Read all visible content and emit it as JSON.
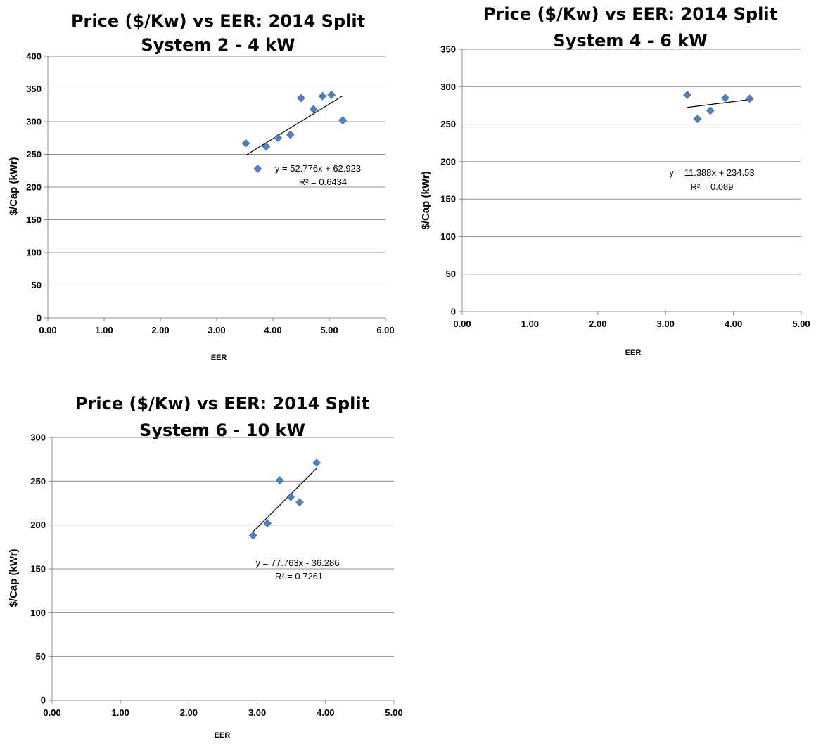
{
  "chart_data": [
    {
      "type": "scatter",
      "title_lines": [
        "Price ($/Kw) vs EER:  2014 Split",
        "System 2 - 4 kW"
      ],
      "xlabel": "EER",
      "ylabel": "$/Cap (kWr)",
      "xlim": [
        0,
        6
      ],
      "ylim": [
        0,
        400
      ],
      "xticks": [
        "0.00",
        "1.00",
        "2.00",
        "3.00",
        "4.00",
        "5.00",
        "6.00"
      ],
      "yticks": [
        "0",
        "50",
        "100",
        "150",
        "200",
        "250",
        "300",
        "350",
        "400"
      ],
      "grid": "horizontal",
      "marker_color": "#4f81bd",
      "points": [
        {
          "x": 3.52,
          "y": 267
        },
        {
          "x": 3.73,
          "y": 228
        },
        {
          "x": 3.88,
          "y": 262
        },
        {
          "x": 4.09,
          "y": 275
        },
        {
          "x": 4.31,
          "y": 280
        },
        {
          "x": 4.5,
          "y": 336
        },
        {
          "x": 4.72,
          "y": 319
        },
        {
          "x": 4.88,
          "y": 339
        },
        {
          "x": 5.04,
          "y": 341
        },
        {
          "x": 5.24,
          "y": 302
        }
      ],
      "trendline": {
        "slope": 52.776,
        "intercept": 62.923,
        "x_start": 3.52,
        "x_end": 5.24
      },
      "equation": "y = 52.776x + 62.923",
      "r_squared": "R² = 0.6434"
    },
    {
      "type": "scatter",
      "title_lines": [
        "Price ($/Kw) vs EER:  2014 Split",
        "System 4 - 6 kW"
      ],
      "xlabel": "EER",
      "ylabel": "$/Cap (kWr)",
      "xlim": [
        0,
        5
      ],
      "ylim": [
        0,
        350
      ],
      "xticks": [
        "0.00",
        "1.00",
        "2.00",
        "3.00",
        "4.00",
        "5.00"
      ],
      "yticks": [
        "0",
        "50",
        "100",
        "150",
        "200",
        "250",
        "300",
        "350"
      ],
      "grid": "horizontal",
      "marker_color": "#4f81bd",
      "points": [
        {
          "x": 3.32,
          "y": 289
        },
        {
          "x": 3.47,
          "y": 257
        },
        {
          "x": 3.66,
          "y": 268
        },
        {
          "x": 3.88,
          "y": 285
        },
        {
          "x": 4.24,
          "y": 284
        }
      ],
      "trendline": {
        "slope": 11.388,
        "intercept": 234.53,
        "x_start": 3.32,
        "x_end": 4.24
      },
      "equation": "y = 11.388x + 234.53",
      "r_squared": "R² = 0.089"
    },
    {
      "type": "scatter",
      "title_lines": [
        "Price ($/Kw) vs EER:  2014 Split",
        "System 6 - 10 kW"
      ],
      "xlabel": "EER",
      "ylabel": "$/Cap (kWr)",
      "xlim": [
        0,
        5
      ],
      "ylim": [
        0,
        300
      ],
      "xticks": [
        "0.00",
        "1.00",
        "2.00",
        "3.00",
        "4.00",
        "5.00"
      ],
      "yticks": [
        "0",
        "50",
        "100",
        "150",
        "200",
        "250",
        "300"
      ],
      "grid": "horizontal",
      "marker_color": "#4f81bd",
      "points": [
        {
          "x": 2.94,
          "y": 188
        },
        {
          "x": 3.15,
          "y": 202
        },
        {
          "x": 3.33,
          "y": 251
        },
        {
          "x": 3.49,
          "y": 232
        },
        {
          "x": 3.62,
          "y": 226
        },
        {
          "x": 3.87,
          "y": 271
        }
      ],
      "trendline": {
        "slope": 77.763,
        "intercept": -36.286,
        "x_start": 2.94,
        "x_end": 3.87
      },
      "equation": "y = 77.763x - 36.286",
      "r_squared": "R² = 0.7261"
    }
  ]
}
